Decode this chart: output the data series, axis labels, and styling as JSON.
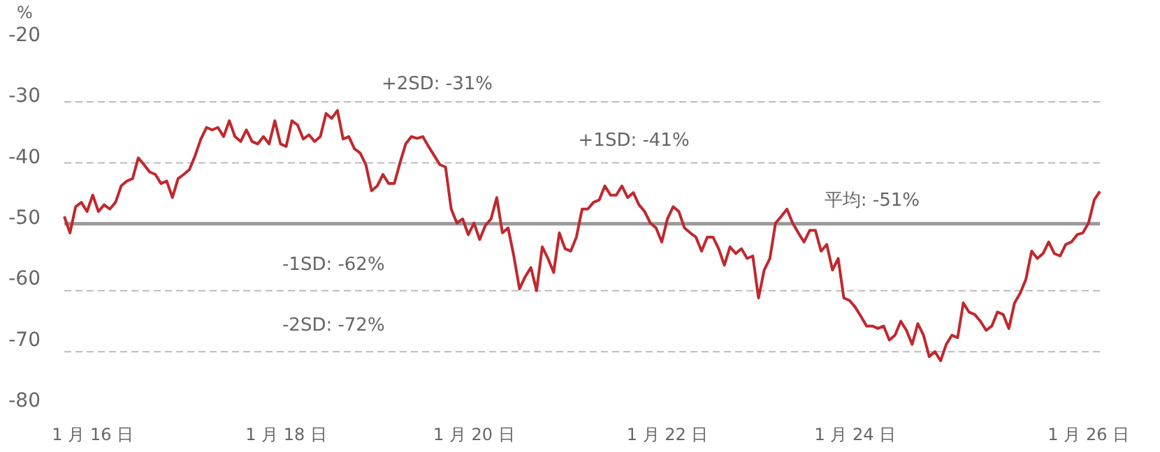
{
  "chart_data": {
    "type": "line",
    "ylabel": "%",
    "categories": [
      null,
      null,
      null,
      null,
      null,
      "1 月 16 日",
      null,
      null,
      null,
      null,
      null,
      null,
      null,
      null,
      null,
      null,
      null,
      null,
      null,
      null,
      null,
      null,
      null,
      null,
      null,
      null,
      null,
      null,
      null,
      null,
      null,
      null,
      null,
      null,
      null,
      null,
      null,
      null,
      null,
      "1 月 18 日",
      null,
      null,
      null,
      null,
      null,
      null,
      null,
      null,
      null,
      null,
      null,
      null,
      null,
      null,
      null,
      null,
      null,
      null,
      null,
      null,
      null,
      null,
      null,
      null,
      null,
      null,
      null,
      null,
      null,
      null,
      null,
      null,
      "1 月 20 日",
      null,
      null,
      null,
      null,
      null,
      null,
      null,
      null,
      null,
      null,
      null,
      null,
      null,
      null,
      null,
      null,
      null,
      null,
      null,
      null,
      null,
      null,
      null,
      null,
      null,
      null,
      null,
      null,
      null,
      null,
      null,
      null,
      null,
      "1 月 22 日",
      null,
      null,
      null,
      null,
      null,
      null,
      null,
      null,
      null,
      null,
      null,
      null,
      null,
      null,
      null,
      null,
      null,
      null,
      null,
      null,
      null,
      null,
      null,
      null,
      null,
      null,
      null,
      null,
      null,
      null,
      null,
      null,
      "1 月 24 日",
      null,
      null,
      null,
      null,
      null,
      null,
      null,
      null,
      null,
      null,
      null,
      null,
      null,
      null,
      null,
      null,
      null,
      null,
      null,
      null,
      null,
      null,
      null,
      null,
      null,
      null,
      null,
      null,
      null,
      null,
      null,
      null,
      null,
      null,
      null,
      null,
      null,
      null,
      null,
      null,
      "1 月 26 日",
      null,
      null
    ],
    "ylim": [
      -80,
      -20
    ],
    "yticks": [
      -20,
      -30,
      -40,
      -50,
      -60,
      -70,
      -80
    ],
    "grid": false,
    "legend": false,
    "ref_lines": [
      {
        "axis": "y",
        "value": -31,
        "label": "+2SD: -31%",
        "color": "#bbbbbb",
        "line_style": "dashed"
      },
      {
        "axis": "y",
        "value": -41,
        "label": "+1SD: -41%",
        "color": "#bbbbbb",
        "line_style": "dashed"
      },
      {
        "axis": "y",
        "value": -51,
        "label": "平均: -51%",
        "color": "#999999",
        "line_style": "solid"
      },
      {
        "axis": "y",
        "value": -62,
        "label": "-1SD: -62%",
        "color": "#bbbbbb",
        "line_style": "dashed"
      },
      {
        "axis": "y",
        "value": -72,
        "label": "-2SD: -72%",
        "color": "#bbbbbb",
        "line_style": "dashed"
      }
    ],
    "series": [
      {
        "color": "#c0282d",
        "values": [
          -49.8,
          -52.5,
          -48.2,
          -47.5,
          -49.0,
          -46.3,
          -49.0,
          -47.9,
          -48.6,
          -47.5,
          -44.8,
          -44.0,
          -43.6,
          -40.2,
          -41.3,
          -42.5,
          -42.9,
          -44.4,
          -44.0,
          -46.7,
          -43.6,
          -42.9,
          -42.1,
          -39.8,
          -37.1,
          -35.2,
          -35.6,
          -35.2,
          -36.7,
          -34.1,
          -36.7,
          -37.5,
          -35.6,
          -37.5,
          -37.9,
          -36.7,
          -37.9,
          -34.1,
          -37.9,
          -38.3,
          -34.1,
          -34.8,
          -37.1,
          -36.4,
          -37.5,
          -36.7,
          -32.9,
          -33.7,
          -32.4,
          -37.1,
          -36.7,
          -38.7,
          -39.4,
          -41.3,
          -45.6,
          -44.8,
          -42.9,
          -44.4,
          -44.4,
          -41.0,
          -37.9,
          -36.7,
          -37.0,
          -36.7,
          -38.3,
          -39.8,
          -41.3,
          -41.7,
          -48.6,
          -50.9,
          -50.2,
          -52.8,
          -50.9,
          -53.6,
          -51.3,
          -50.2,
          -46.7,
          -52.5,
          -51.7,
          -56.3,
          -61.7,
          -59.7,
          -58.2,
          -62.0,
          -54.8,
          -56.7,
          -59.0,
          -52.5,
          -55.1,
          -55.5,
          -53.2,
          -48.6,
          -48.6,
          -47.5,
          -47.1,
          -44.8,
          -46.3,
          -46.3,
          -44.8,
          -46.7,
          -45.9,
          -47.9,
          -49.0,
          -50.9,
          -51.7,
          -54.0,
          -50.2,
          -48.2,
          -49.0,
          -51.7,
          -52.5,
          -53.2,
          -55.5,
          -53.2,
          -53.2,
          -55.1,
          -57.8,
          -54.8,
          -55.9,
          -55.1,
          -56.7,
          -56.3,
          -63.2,
          -58.6,
          -56.7,
          -50.9,
          -49.8,
          -48.6,
          -50.9,
          -52.5,
          -54.0,
          -52.1,
          -52.1,
          -55.5,
          -54.4,
          -58.6,
          -56.7,
          -63.2,
          -63.6,
          -64.7,
          -66.2,
          -67.8,
          -67.8,
          -68.2,
          -67.8,
          -70.1,
          -69.3,
          -67.0,
          -68.5,
          -70.8,
          -67.4,
          -69.3,
          -72.8,
          -72.0,
          -73.5,
          -70.8,
          -69.3,
          -69.7,
          -64.0,
          -65.5,
          -65.9,
          -67.0,
          -68.5,
          -67.8,
          -65.5,
          -65.9,
          -68.2,
          -64.0,
          -62.4,
          -60.1,
          -55.5,
          -56.7,
          -55.9,
          -54.0,
          -55.9,
          -56.3,
          -54.4,
          -54.0,
          -52.8,
          -52.5,
          -50.9,
          -47.1,
          -45.7
        ]
      }
    ]
  }
}
